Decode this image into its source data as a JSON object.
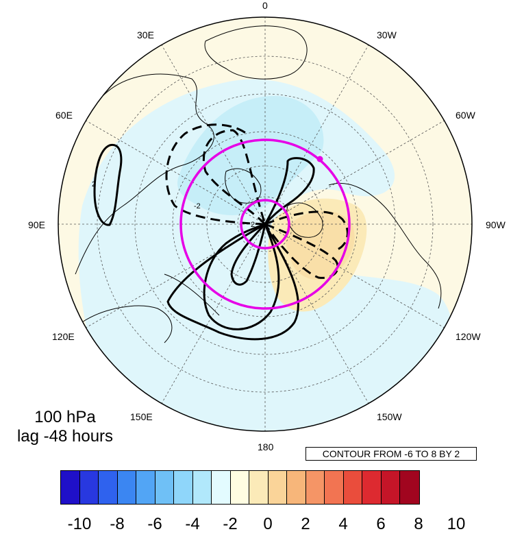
{
  "title": {
    "line1": "100 hPa",
    "line2": "lag -48 hours"
  },
  "contour_note": "CONTOUR FROM -6 TO 8 BY 2",
  "longitude_labels": [
    "0",
    "30W",
    "60W",
    "90W",
    "120W",
    "150W",
    "180",
    "150E",
    "120E",
    "90E",
    "60E",
    "30E"
  ],
  "contour_labels": [
    "2",
    "2",
    "-2"
  ],
  "colorbar": {
    "colors": [
      "#1f10c8",
      "#2838e0",
      "#2f62ee",
      "#3b86f2",
      "#52a5f5",
      "#6fc0f6",
      "#8fd6fa",
      "#b1e8fb",
      "#e3fbff",
      "#fffde2",
      "#fbeab8",
      "#fad499",
      "#f7b67a",
      "#f59566",
      "#f27452",
      "#ea4d3c",
      "#dd2a30",
      "#c51528",
      "#a1051f"
    ],
    "tick_labels": [
      "-10",
      "-8",
      "-6",
      "-4",
      "-2",
      "0",
      "2",
      "4",
      "6",
      "8",
      "10"
    ]
  },
  "colors": {
    "highlight": "#e600e6",
    "contour": "#000000"
  }
}
